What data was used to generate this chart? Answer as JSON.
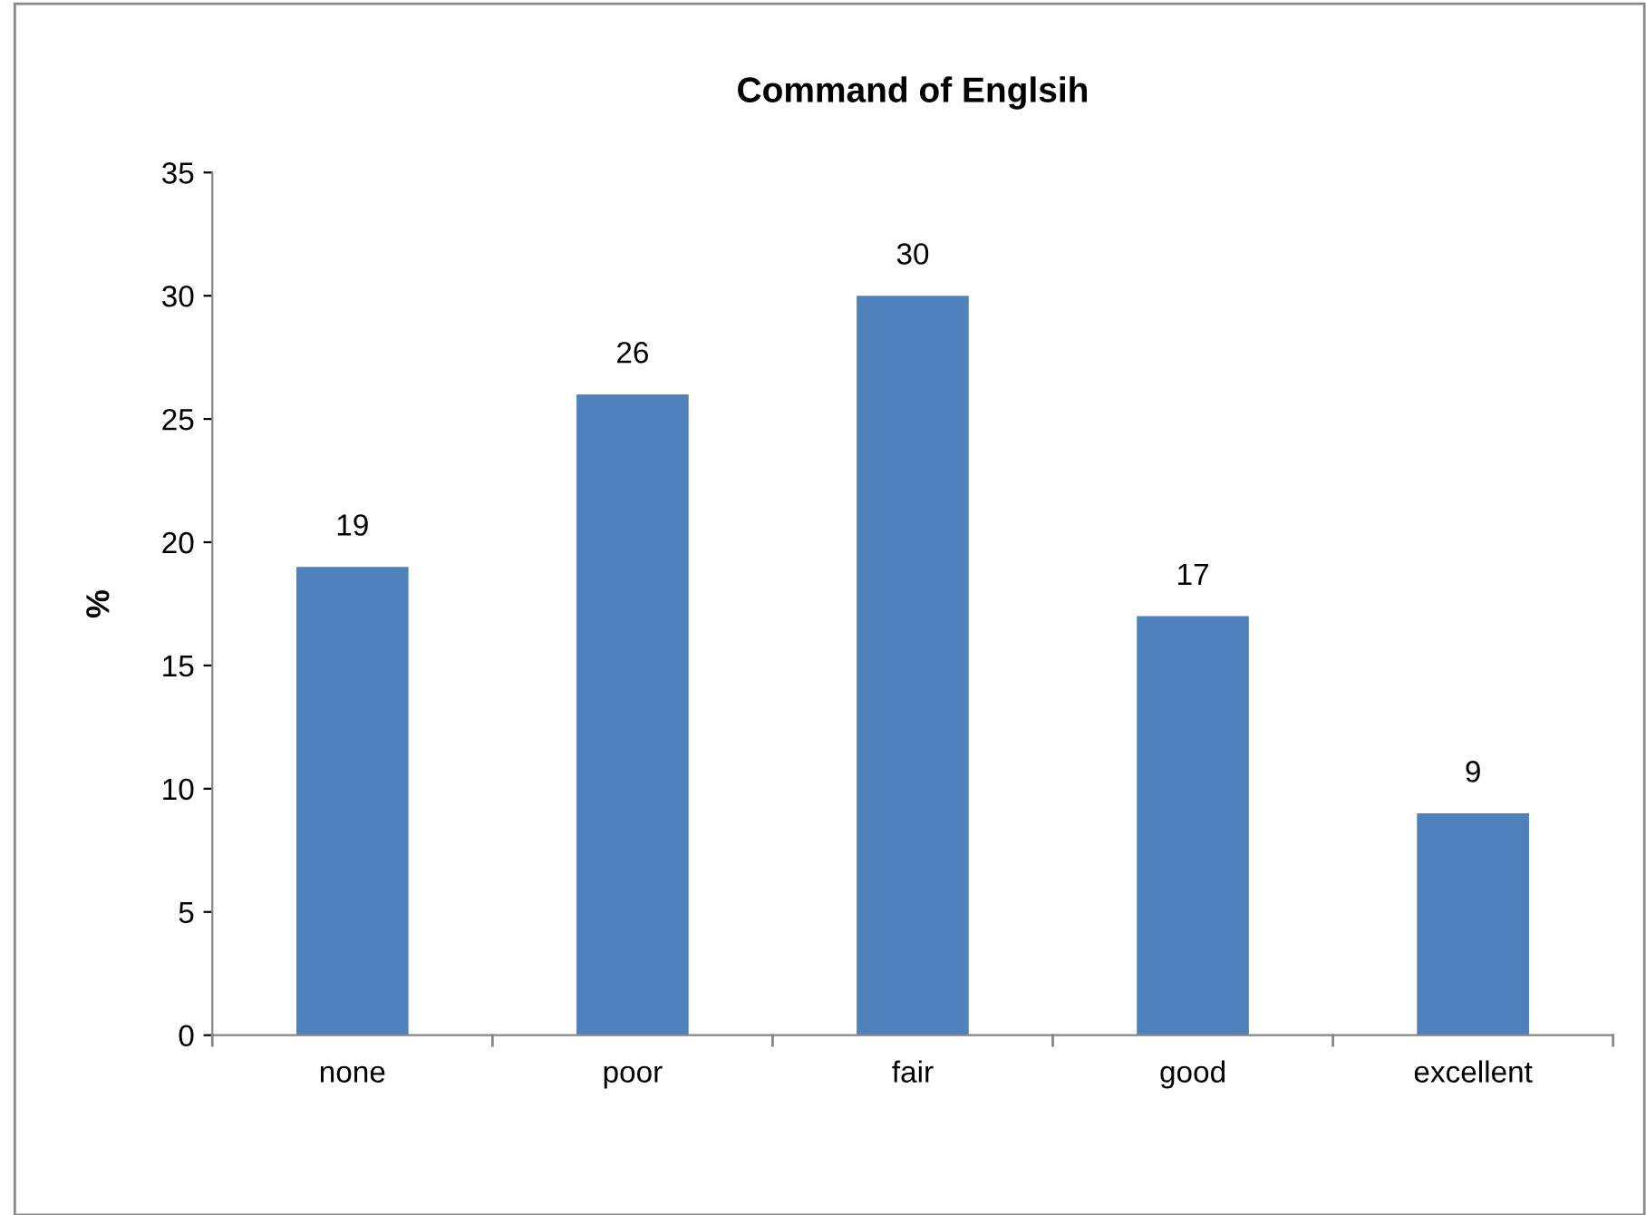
{
  "chart_data": {
    "type": "bar",
    "title": "Command of Englsih",
    "ylabel": "%",
    "categories": [
      "none",
      "poor",
      "fair",
      "good",
      "excellent"
    ],
    "values": [
      19,
      26,
      30,
      17,
      9
    ],
    "color": "#4f81bd",
    "ylim": [
      0,
      35
    ],
    "yticks": [
      0,
      5,
      10,
      15,
      20,
      25,
      30,
      35
    ],
    "data_labels": true,
    "grid": false,
    "legend": false
  }
}
